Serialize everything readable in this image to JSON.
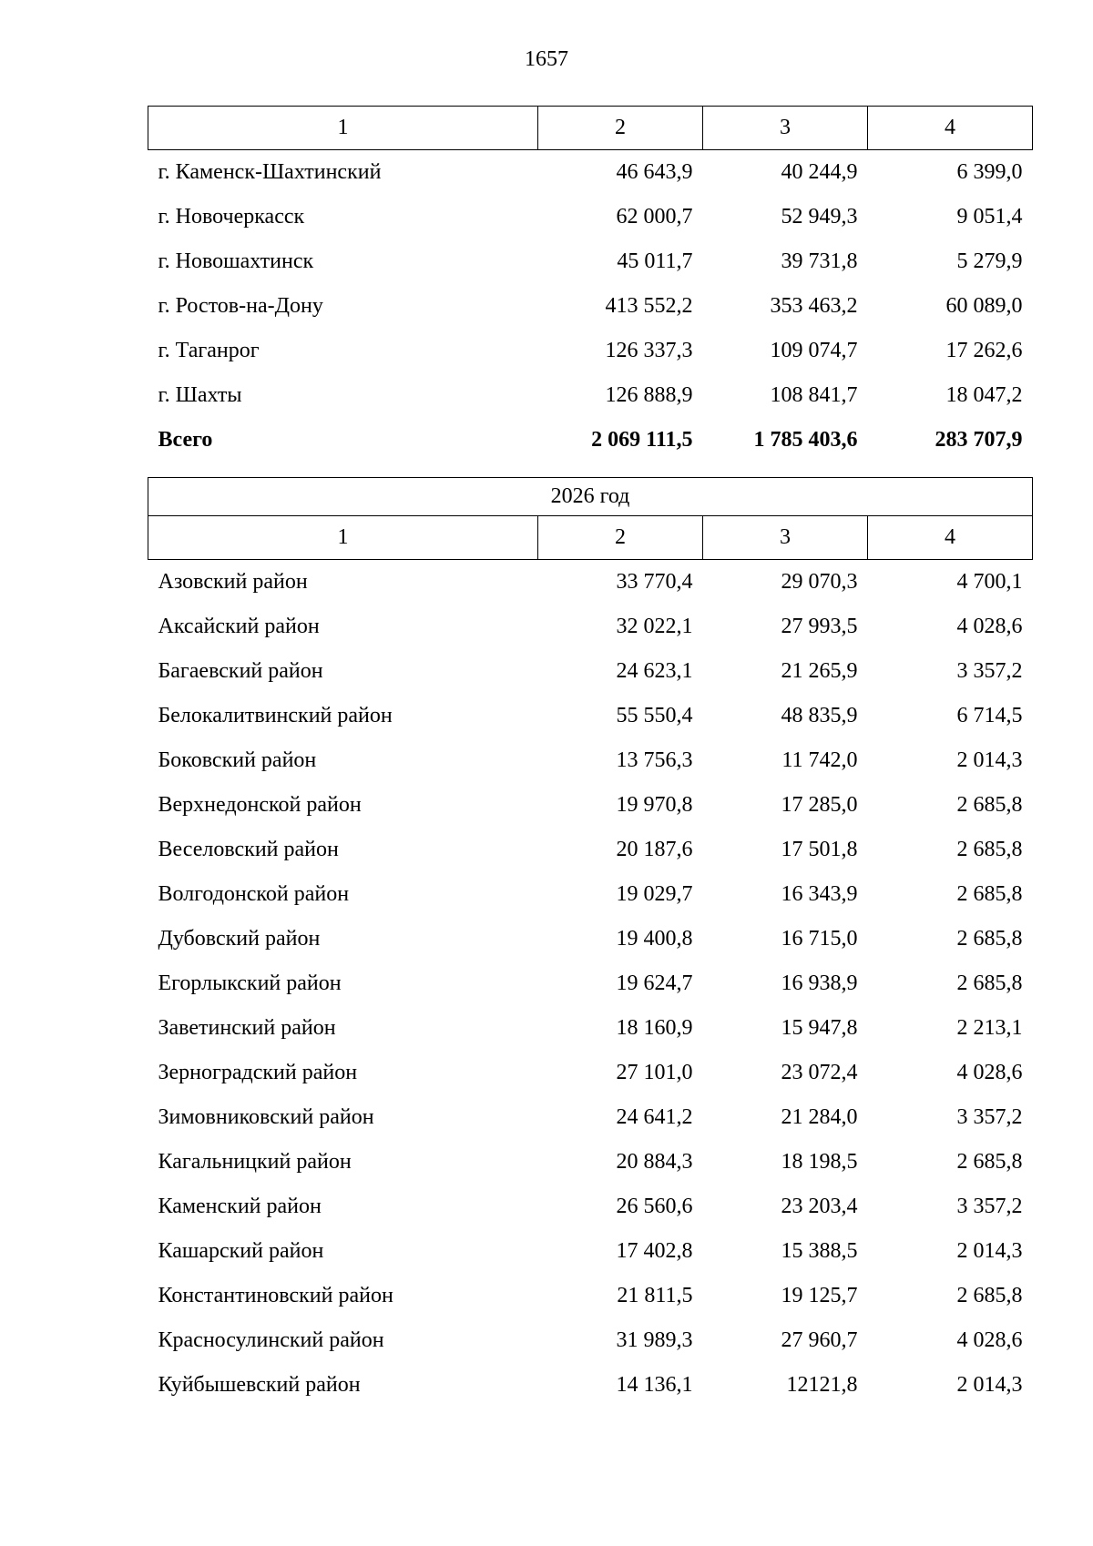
{
  "page_number": "1657",
  "column_headers": [
    "1",
    "2",
    "3",
    "4"
  ],
  "table1": {
    "rows": [
      {
        "name": "г. Каменск-Шахтинский",
        "c2": "46 643,9",
        "c3": "40 244,9",
        "c4": "6 399,0"
      },
      {
        "name": "г. Новочеркасск",
        "c2": "62 000,7",
        "c3": "52 949,3",
        "c4": "9 051,4"
      },
      {
        "name": "г. Новошахтинск",
        "c2": "45 011,7",
        "c3": "39 731,8",
        "c4": "5 279,9"
      },
      {
        "name": "г. Ростов-на-Дону",
        "c2": "413 552,2",
        "c3": "353 463,2",
        "c4": "60 089,0"
      },
      {
        "name": "г. Таганрог",
        "c2": "126 337,3",
        "c3": "109 074,7",
        "c4": "17 262,6"
      },
      {
        "name": "г. Шахты",
        "c2": "126 888,9",
        "c3": "108 841,7",
        "c4": "18 047,2"
      }
    ],
    "total": {
      "name": "Всего",
      "c2": "2 069 111,5",
      "c3": "1 785 403,6",
      "c4": "283 707,9"
    }
  },
  "table2": {
    "year_label": "2026 год",
    "rows": [
      {
        "name": "Азовский район",
        "c2": "33 770,4",
        "c3": "29 070,3",
        "c4": "4 700,1"
      },
      {
        "name": "Аксайский район",
        "c2": "32 022,1",
        "c3": "27 993,5",
        "c4": "4 028,6"
      },
      {
        "name": "Багаевский район",
        "c2": "24 623,1",
        "c3": "21 265,9",
        "c4": "3 357,2"
      },
      {
        "name": "Белокалитвинский район",
        "c2": "55 550,4",
        "c3": "48 835,9",
        "c4": "6 714,5"
      },
      {
        "name": "Боковский район",
        "c2": "13 756,3",
        "c3": "11 742,0",
        "c4": "2 014,3"
      },
      {
        "name": "Верхнедонской район",
        "c2": "19 970,8",
        "c3": "17 285,0",
        "c4": "2 685,8"
      },
      {
        "name": "Веселовский район",
        "c2": "20 187,6",
        "c3": "17 501,8",
        "c4": "2 685,8"
      },
      {
        "name": "Волгодонской район",
        "c2": "19 029,7",
        "c3": "16 343,9",
        "c4": "2 685,8"
      },
      {
        "name": "Дубовский район",
        "c2": "19 400,8",
        "c3": "16 715,0",
        "c4": "2 685,8"
      },
      {
        "name": "Егорлыкский район",
        "c2": "19 624,7",
        "c3": "16 938,9",
        "c4": "2 685,8"
      },
      {
        "name": "Заветинский район",
        "c2": "18 160,9",
        "c3": "15 947,8",
        "c4": "2 213,1"
      },
      {
        "name": "Зерноградский район",
        "c2": "27 101,0",
        "c3": "23 072,4",
        "c4": "4 028,6"
      },
      {
        "name": "Зимовниковский район",
        "c2": "24 641,2",
        "c3": "21 284,0",
        "c4": "3 357,2"
      },
      {
        "name": "Кагальницкий район",
        "c2": "20 884,3",
        "c3": "18 198,5",
        "c4": "2 685,8"
      },
      {
        "name": "Каменский район",
        "c2": "26 560,6",
        "c3": "23 203,4",
        "c4": "3 357,2"
      },
      {
        "name": "Кашарский район",
        "c2": "17 402,8",
        "c3": "15 388,5",
        "c4": "2 014,3"
      },
      {
        "name": "Константиновский район",
        "c2": "21 811,5",
        "c3": "19 125,7",
        "c4": "2 685,8"
      },
      {
        "name": "Красносулинский район",
        "c2": "31 989,3",
        "c3": "27 960,7",
        "c4": "4 028,6"
      },
      {
        "name": "Куйбышевский район",
        "c2": "14 136,1",
        "c3": "12121,8",
        "c4": "2 014,3"
      }
    ]
  }
}
